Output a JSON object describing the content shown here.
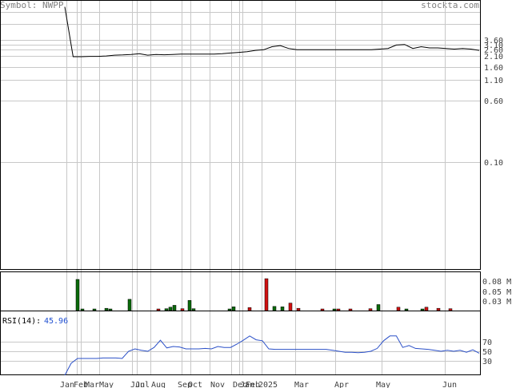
{
  "header": {
    "symbol_text": "Symbol: NWPP",
    "site": "stockta.com"
  },
  "colors": {
    "price_line": "#000000",
    "rsi_line": "#2b50c8",
    "vol_up": "#0a6a0a",
    "vol_down": "#d01010",
    "grid": "#c8c8c8"
  },
  "chart_data": [
    {
      "type": "line",
      "panel": "price",
      "scale": "log",
      "y_ticks": [
        "3.60",
        "3.10",
        "2.60",
        "2.10",
        "1.60",
        "1.10",
        "0.60",
        "0.10"
      ],
      "x_ticks": [
        "Jan",
        "Feb",
        "Mar",
        "Apr",
        "May",
        "Jun",
        "Jul",
        "Aug",
        "Sep",
        "Oct",
        "Nov",
        "Dec",
        "Jan",
        "Feb",
        "2025",
        "Mar",
        "Apr",
        "May",
        "Jun"
      ],
      "series": [
        {
          "values": [
            9.5,
            2.2,
            2.2,
            2.22,
            2.22,
            2.25,
            2.3,
            2.32,
            2.35,
            2.4,
            2.3,
            2.35,
            2.33,
            2.35,
            2.37,
            2.37,
            2.37,
            2.38,
            2.38,
            2.4,
            2.45,
            2.5,
            2.55,
            2.65,
            2.7,
            2.95,
            3.05,
            2.8,
            2.7,
            2.7,
            2.7,
            2.7,
            2.7,
            2.7,
            2.7,
            2.7,
            2.7,
            2.7,
            2.75,
            2.8,
            3.1,
            3.15,
            2.8,
            2.95,
            2.85,
            2.85,
            2.8,
            2.75,
            2.8,
            2.75,
            2.65
          ]
        }
      ]
    },
    {
      "type": "bar",
      "panel": "volume",
      "y_ticks": [
        "0.08 M",
        "0.05 M",
        "0.03 M"
      ],
      "ylim": [
        0,
        0.1
      ],
      "bars": [
        {
          "x": 97,
          "value": 0.083,
          "color": "green"
        },
        {
          "x": 103,
          "value": 0.003,
          "color": "green"
        },
        {
          "x": 118,
          "value": 0.003,
          "color": "green"
        },
        {
          "x": 133,
          "value": 0.006,
          "color": "green"
        },
        {
          "x": 138,
          "value": 0.003,
          "color": "green"
        },
        {
          "x": 162,
          "value": 0.03,
          "color": "green"
        },
        {
          "x": 198,
          "value": 0.004,
          "color": "red"
        },
        {
          "x": 208,
          "value": 0.005,
          "color": "green"
        },
        {
          "x": 213,
          "value": 0.009,
          "color": "green"
        },
        {
          "x": 218,
          "value": 0.014,
          "color": "green"
        },
        {
          "x": 228,
          "value": 0.005,
          "color": "red"
        },
        {
          "x": 237,
          "value": 0.027,
          "color": "green"
        },
        {
          "x": 242,
          "value": 0.005,
          "color": "green"
        },
        {
          "x": 287,
          "value": 0.003,
          "color": "green"
        },
        {
          "x": 292,
          "value": 0.01,
          "color": "green"
        },
        {
          "x": 312,
          "value": 0.008,
          "color": "red"
        },
        {
          "x": 333,
          "value": 0.085,
          "color": "red"
        },
        {
          "x": 343,
          "value": 0.011,
          "color": "green"
        },
        {
          "x": 353,
          "value": 0.01,
          "color": "green"
        },
        {
          "x": 363,
          "value": 0.02,
          "color": "red"
        },
        {
          "x": 373,
          "value": 0.006,
          "color": "red"
        },
        {
          "x": 403,
          "value": 0.004,
          "color": "red"
        },
        {
          "x": 418,
          "value": 0.004,
          "color": "green"
        },
        {
          "x": 423,
          "value": 0.003,
          "color": "red"
        },
        {
          "x": 438,
          "value": 0.003,
          "color": "red"
        },
        {
          "x": 463,
          "value": 0.005,
          "color": "red"
        },
        {
          "x": 473,
          "value": 0.016,
          "color": "green"
        },
        {
          "x": 498,
          "value": 0.009,
          "color": "red"
        },
        {
          "x": 508,
          "value": 0.004,
          "color": "green"
        },
        {
          "x": 528,
          "value": 0.004,
          "color": "green"
        },
        {
          "x": 533,
          "value": 0.009,
          "color": "red"
        },
        {
          "x": 548,
          "value": 0.006,
          "color": "red"
        },
        {
          "x": 563,
          "value": 0.005,
          "color": "red"
        }
      ]
    },
    {
      "type": "line",
      "panel": "rsi",
      "label": "RSI(14):",
      "current_value": "45.96",
      "y_ticks": [
        "70",
        "50",
        "30"
      ],
      "ylim": [
        0,
        100
      ],
      "series": [
        {
          "values": [
            0,
            25,
            35,
            35,
            35,
            35,
            36,
            36,
            36,
            35,
            50,
            55,
            52,
            50,
            58,
            73,
            57,
            60,
            59,
            55,
            55,
            55,
            56,
            55,
            60,
            58,
            58,
            65,
            73,
            82,
            74,
            72,
            55,
            54,
            54,
            54,
            54,
            54,
            54,
            54,
            54,
            54,
            52,
            50,
            48,
            48,
            47,
            48,
            50,
            56,
            72,
            82,
            82,
            58,
            62,
            56,
            55,
            54,
            52,
            50,
            52,
            50,
            52,
            48,
            53,
            46
          ]
        }
      ]
    }
  ]
}
